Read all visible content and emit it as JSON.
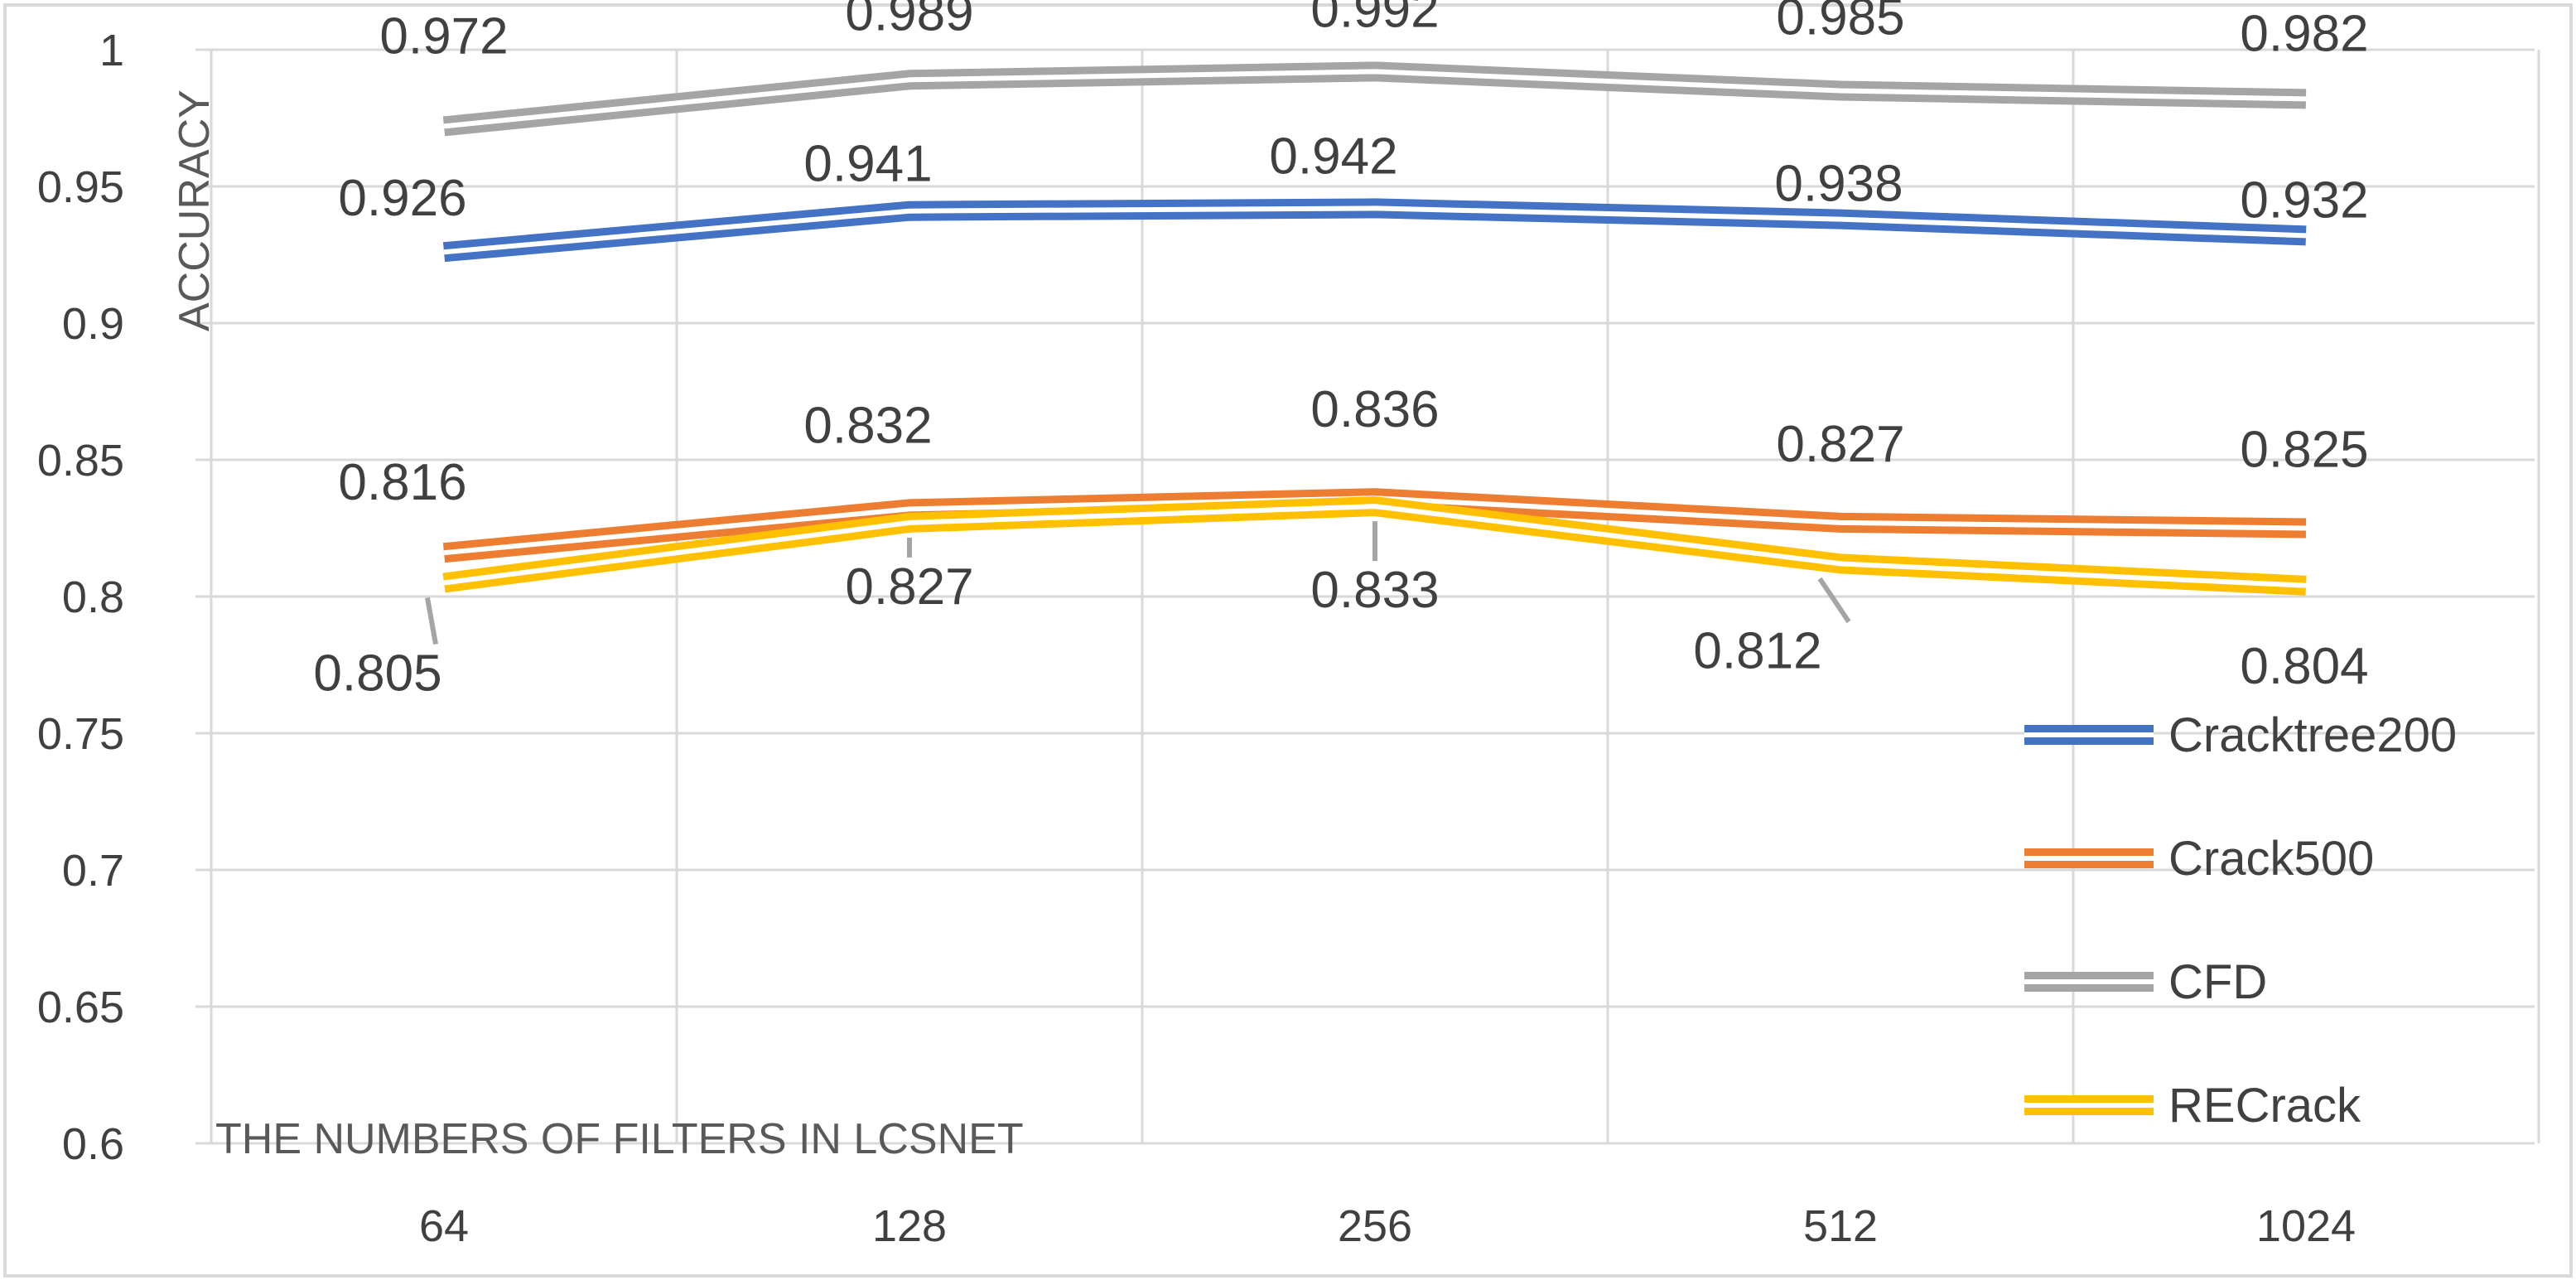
{
  "chart_data": {
    "type": "line",
    "title": "",
    "xlabel": "THE NUMBERS OF FILTERS IN LCSNET",
    "ylabel": "ACCURACY",
    "categories": [
      "64",
      "128",
      "256",
      "512",
      "1024"
    ],
    "ylim": [
      0.6,
      1.0
    ],
    "yticks": [
      "0.6",
      "0.65",
      "0.7",
      "0.75",
      "0.8",
      "0.85",
      "0.9",
      "0.95",
      "1"
    ],
    "grid": true,
    "legend_position": "right",
    "series": [
      {
        "name": "Cracktree200",
        "color": "#4472C4",
        "values": [
          0.926,
          0.941,
          0.942,
          0.938,
          0.932
        ],
        "labels": [
          "0.926",
          "0.941",
          "0.942",
          "0.938",
          "0.932"
        ]
      },
      {
        "name": "Crack500",
        "color": "#ED7D31",
        "values": [
          0.816,
          0.832,
          0.836,
          0.827,
          0.825
        ],
        "labels": [
          "0.816",
          "0.832",
          "0.836",
          "0.827",
          "0.825"
        ]
      },
      {
        "name": "CFD",
        "color": "#A5A5A5",
        "values": [
          0.972,
          0.989,
          0.992,
          0.985,
          0.982
        ],
        "labels": [
          "0.972",
          "0.989",
          "0.992",
          "0.985",
          "0.982"
        ]
      },
      {
        "name": "RECrack",
        "color": "#FFC000",
        "values": [
          0.805,
          0.827,
          0.833,
          0.812,
          0.804
        ],
        "labels": [
          "0.805",
          "0.827",
          "0.833",
          "0.812",
          "0.804"
        ]
      }
    ]
  }
}
